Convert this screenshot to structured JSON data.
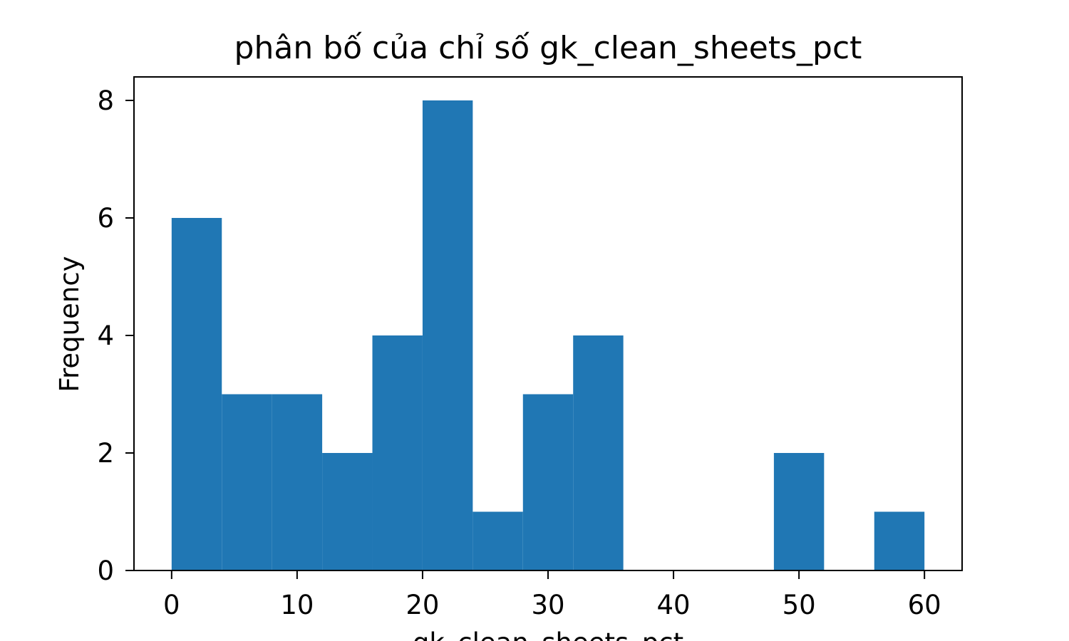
{
  "chart_data": {
    "type": "bar",
    "subtype": "histogram",
    "title": "phân bố của chỉ số gk_clean_sheets_pct",
    "xlabel": "gk_clean_sheets_pct",
    "ylabel": "Frequency",
    "bin_edges": [
      0,
      4,
      8,
      12,
      16,
      20,
      24,
      28,
      32,
      36,
      40,
      44,
      48,
      52,
      56,
      60
    ],
    "values": [
      6,
      3,
      3,
      2,
      4,
      8,
      1,
      3,
      4,
      0,
      0,
      0,
      2,
      0,
      1
    ],
    "xlim": [
      -3,
      63
    ],
    "ylim": [
      0,
      8.4
    ],
    "xticks": [
      0,
      10,
      20,
      30,
      40,
      50,
      60
    ],
    "yticks": [
      0,
      2,
      4,
      6,
      8
    ],
    "grid": false,
    "legend": "none",
    "colors": {
      "bar": "#2077b4",
      "axis": "#000000",
      "background": "#ffffff"
    }
  }
}
